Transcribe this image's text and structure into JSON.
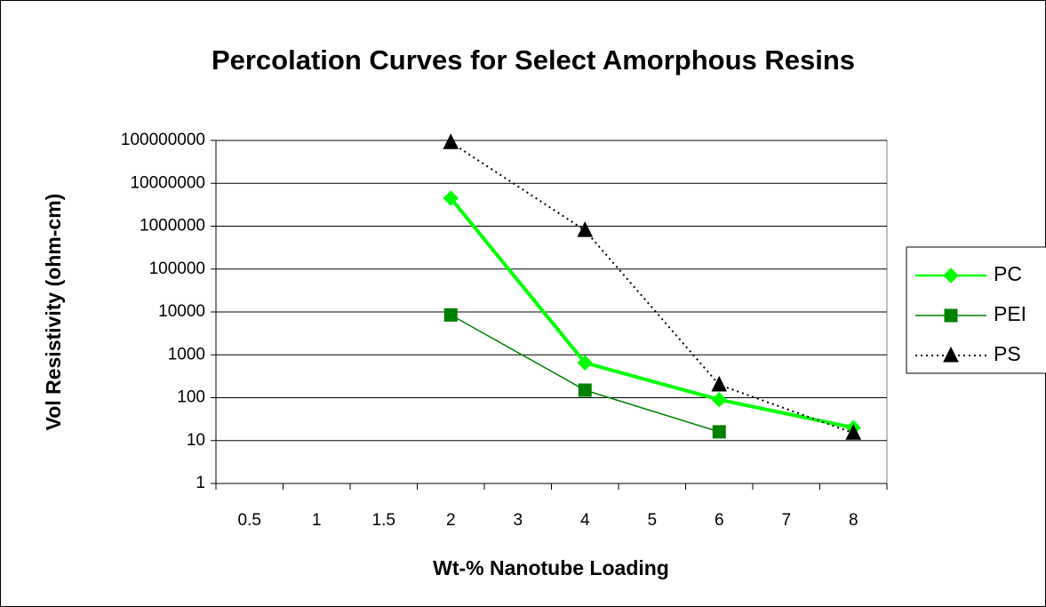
{
  "chart_data": {
    "type": "line",
    "title": "Percolation Curves for Select Amorphous Resins",
    "x_label": "Wt-% Nanotube Loading",
    "y_label": "Vol Resistivity (ohm-cm)",
    "categories": [
      "0.5",
      "1",
      "1.5",
      "2",
      "3",
      "4",
      "5",
      "6",
      "7",
      "8"
    ],
    "series": [
      {
        "name": "PC",
        "color": "#00ff00",
        "marker": "diamond",
        "line_width": 4,
        "dash": "solid",
        "values": [
          null,
          null,
          null,
          4500000,
          null,
          650,
          null,
          90,
          null,
          20
        ]
      },
      {
        "name": "PEI",
        "color": "#008000",
        "marker": "square",
        "line_width": 1.5,
        "dash": "solid",
        "values": [
          null,
          null,
          null,
          8500,
          null,
          150,
          null,
          16,
          null,
          null
        ]
      },
      {
        "name": "PS",
        "color": "#000000",
        "marker": "triangle",
        "line_width": 2,
        "dash": "dotted",
        "values": [
          null,
          null,
          null,
          90000000,
          null,
          800000,
          null,
          200,
          null,
          15
        ]
      }
    ],
    "ylim": [
      1,
      100000000
    ],
    "yticks": [
      1,
      10,
      100,
      1000,
      10000,
      100000,
      1000000,
      10000000,
      100000000
    ],
    "log_scale": true,
    "grid": true,
    "legend": "right"
  }
}
